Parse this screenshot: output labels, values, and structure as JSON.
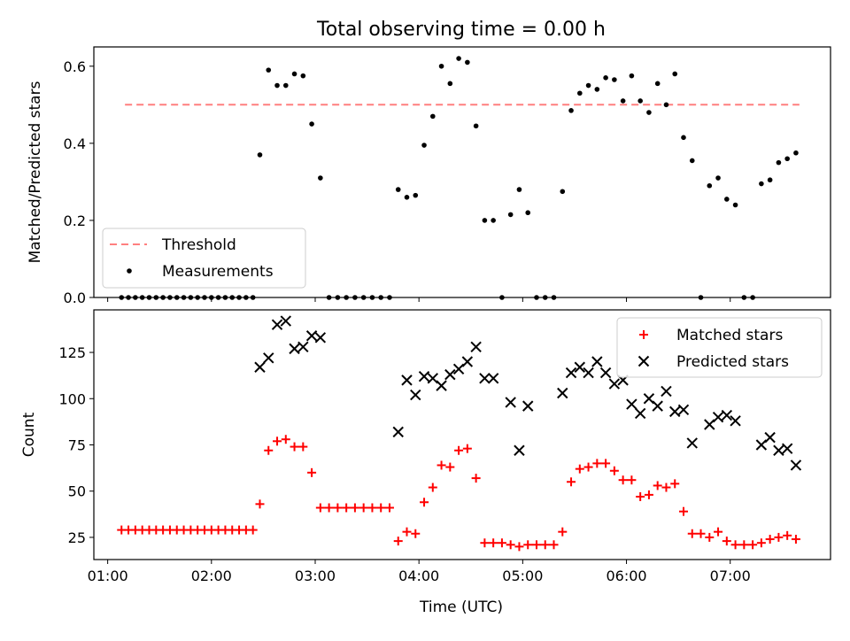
{
  "title": "Total observing time = 0.00 h",
  "xlabel": "Time (UTC)",
  "x_tick_labels": [
    "01:00",
    "02:00",
    "03:00",
    "04:00",
    "05:00",
    "06:00",
    "07:00"
  ],
  "chart_data": [
    {
      "type": "scatter",
      "panel": "top",
      "ylabel": "Matched/Predicted stars",
      "xlim": [
        "00:52",
        "07:58"
      ],
      "ylim": [
        0,
        0.65
      ],
      "y_ticks": [
        0.0,
        0.2,
        0.4,
        0.6
      ],
      "y_tick_labels": [
        "0.0",
        "0.2",
        "0.4",
        "0.6"
      ],
      "legend": "lower-left",
      "threshold": {
        "name": "Threshold",
        "value": 0.5,
        "x_range": [
          "01:10",
          "07:40"
        ],
        "color": "#ff7f7f",
        "style": "dashed"
      },
      "series": [
        {
          "name": "Measurements",
          "color": "#000000",
          "marker": "dot",
          "points": [
            [
              "01:08",
              0
            ],
            [
              "01:12",
              0
            ],
            [
              "01:16",
              0
            ],
            [
              "01:20",
              0
            ],
            [
              "01:24",
              0
            ],
            [
              "01:28",
              0
            ],
            [
              "01:32",
              0
            ],
            [
              "01:36",
              0
            ],
            [
              "01:40",
              0
            ],
            [
              "01:44",
              0
            ],
            [
              "01:48",
              0
            ],
            [
              "01:52",
              0
            ],
            [
              "01:56",
              0
            ],
            [
              "02:00",
              0
            ],
            [
              "02:04",
              0
            ],
            [
              "02:08",
              0
            ],
            [
              "02:12",
              0
            ],
            [
              "02:16",
              0
            ],
            [
              "02:20",
              0
            ],
            [
              "02:24",
              0
            ],
            [
              "02:28",
              0.37
            ],
            [
              "02:33",
              0.59
            ],
            [
              "02:38",
              0.55
            ],
            [
              "02:43",
              0.55
            ],
            [
              "02:48",
              0.58
            ],
            [
              "02:53",
              0.575
            ],
            [
              "02:58",
              0.45
            ],
            [
              "03:03",
              0.31
            ],
            [
              "03:08",
              0
            ],
            [
              "03:13",
              0
            ],
            [
              "03:18",
              0
            ],
            [
              "03:23",
              0
            ],
            [
              "03:28",
              0
            ],
            [
              "03:33",
              0
            ],
            [
              "03:38",
              0
            ],
            [
              "03:43",
              0
            ],
            [
              "03:48",
              0.28
            ],
            [
              "03:53",
              0.26
            ],
            [
              "03:58",
              0.265
            ],
            [
              "04:03",
              0.395
            ],
            [
              "04:08",
              0.47
            ],
            [
              "04:13",
              0.6
            ],
            [
              "04:18",
              0.555
            ],
            [
              "04:23",
              0.62
            ],
            [
              "04:28",
              0.61
            ],
            [
              "04:33",
              0.445
            ],
            [
              "04:38",
              0.2
            ],
            [
              "04:43",
              0.2
            ],
            [
              "04:48",
              0
            ],
            [
              "04:53",
              0.215
            ],
            [
              "04:58",
              0.28
            ],
            [
              "05:03",
              0.22
            ],
            [
              "05:08",
              0
            ],
            [
              "05:13",
              0
            ],
            [
              "05:18",
              0
            ],
            [
              "05:23",
              0.275
            ],
            [
              "05:28",
              0.485
            ],
            [
              "05:33",
              0.53
            ],
            [
              "05:38",
              0.55
            ],
            [
              "05:43",
              0.54
            ],
            [
              "05:48",
              0.57
            ],
            [
              "05:53",
              0.565
            ],
            [
              "05:58",
              0.51
            ],
            [
              "06:03",
              0.575
            ],
            [
              "06:08",
              0.51
            ],
            [
              "06:13",
              0.48
            ],
            [
              "06:18",
              0.555
            ],
            [
              "06:23",
              0.5
            ],
            [
              "06:28",
              0.58
            ],
            [
              "06:33",
              0.415
            ],
            [
              "06:38",
              0.355
            ],
            [
              "06:43",
              0
            ],
            [
              "06:48",
              0.29
            ],
            [
              "06:53",
              0.31
            ],
            [
              "06:58",
              0.255
            ],
            [
              "07:03",
              0.24
            ],
            [
              "07:08",
              0
            ],
            [
              "07:13",
              0
            ],
            [
              "07:18",
              0.295
            ],
            [
              "07:23",
              0.305
            ],
            [
              "07:28",
              0.35
            ],
            [
              "07:33",
              0.36
            ],
            [
              "07:38",
              0.375
            ]
          ]
        }
      ]
    },
    {
      "type": "scatter",
      "panel": "bottom",
      "ylabel": "Count",
      "xlabel": "Time (UTC)",
      "xlim": [
        "00:52",
        "07:58"
      ],
      "ylim": [
        13,
        148
      ],
      "y_ticks": [
        25,
        50,
        75,
        100,
        125
      ],
      "y_tick_labels": [
        "25",
        "50",
        "75",
        "100",
        "125"
      ],
      "legend": "top-right",
      "series": [
        {
          "name": "Matched stars",
          "color": "#ff0000",
          "marker": "plus",
          "points": [
            [
              "01:08",
              29
            ],
            [
              "01:12",
              29
            ],
            [
              "01:16",
              29
            ],
            [
              "01:20",
              29
            ],
            [
              "01:24",
              29
            ],
            [
              "01:28",
              29
            ],
            [
              "01:32",
              29
            ],
            [
              "01:36",
              29
            ],
            [
              "01:40",
              29
            ],
            [
              "01:44",
              29
            ],
            [
              "01:48",
              29
            ],
            [
              "01:52",
              29
            ],
            [
              "01:56",
              29
            ],
            [
              "02:00",
              29
            ],
            [
              "02:04",
              29
            ],
            [
              "02:08",
              29
            ],
            [
              "02:12",
              29
            ],
            [
              "02:16",
              29
            ],
            [
              "02:20",
              29
            ],
            [
              "02:24",
              29
            ],
            [
              "02:28",
              43
            ],
            [
              "02:33",
              72
            ],
            [
              "02:38",
              77
            ],
            [
              "02:43",
              78
            ],
            [
              "02:48",
              74
            ],
            [
              "02:53",
              74
            ],
            [
              "02:58",
              60
            ],
            [
              "03:03",
              41
            ],
            [
              "03:08",
              41
            ],
            [
              "03:13",
              41
            ],
            [
              "03:18",
              41
            ],
            [
              "03:23",
              41
            ],
            [
              "03:28",
              41
            ],
            [
              "03:33",
              41
            ],
            [
              "03:38",
              41
            ],
            [
              "03:43",
              41
            ],
            [
              "03:48",
              23
            ],
            [
              "03:53",
              28
            ],
            [
              "03:58",
              27
            ],
            [
              "04:03",
              44
            ],
            [
              "04:08",
              52
            ],
            [
              "04:13",
              64
            ],
            [
              "04:18",
              63
            ],
            [
              "04:23",
              72
            ],
            [
              "04:28",
              73
            ],
            [
              "04:33",
              57
            ],
            [
              "04:38",
              22
            ],
            [
              "04:43",
              22
            ],
            [
              "04:48",
              22
            ],
            [
              "04:53",
              21
            ],
            [
              "04:58",
              20
            ],
            [
              "05:03",
              21
            ],
            [
              "05:08",
              21
            ],
            [
              "05:13",
              21
            ],
            [
              "05:18",
              21
            ],
            [
              "05:23",
              28
            ],
            [
              "05:28",
              55
            ],
            [
              "05:33",
              62
            ],
            [
              "05:38",
              63
            ],
            [
              "05:43",
              65
            ],
            [
              "05:48",
              65
            ],
            [
              "05:53",
              61
            ],
            [
              "05:58",
              56
            ],
            [
              "06:03",
              56
            ],
            [
              "06:08",
              47
            ],
            [
              "06:13",
              48
            ],
            [
              "06:18",
              53
            ],
            [
              "06:23",
              52
            ],
            [
              "06:28",
              54
            ],
            [
              "06:33",
              39
            ],
            [
              "06:38",
              27
            ],
            [
              "06:43",
              27
            ],
            [
              "06:48",
              25
            ],
            [
              "06:53",
              28
            ],
            [
              "06:58",
              23
            ],
            [
              "07:03",
              21
            ],
            [
              "07:08",
              21
            ],
            [
              "07:13",
              21
            ],
            [
              "07:18",
              22
            ],
            [
              "07:23",
              24
            ],
            [
              "07:28",
              25
            ],
            [
              "07:33",
              26
            ],
            [
              "07:38",
              24
            ]
          ]
        },
        {
          "name": "Predicted stars",
          "color": "#000000",
          "marker": "x",
          "points": [
            [
              "02:28",
              117
            ],
            [
              "02:33",
              122
            ],
            [
              "02:38",
              140
            ],
            [
              "02:43",
              142
            ],
            [
              "02:48",
              127
            ],
            [
              "02:53",
              128
            ],
            [
              "02:58",
              134
            ],
            [
              "03:03",
              133
            ],
            [
              "03:48",
              82
            ],
            [
              "03:53",
              110
            ],
            [
              "03:58",
              102
            ],
            [
              "04:03",
              112
            ],
            [
              "04:08",
              111
            ],
            [
              "04:13",
              107
            ],
            [
              "04:18",
              113
            ],
            [
              "04:23",
              116
            ],
            [
              "04:28",
              120
            ],
            [
              "04:33",
              128
            ],
            [
              "04:38",
              111
            ],
            [
              "04:43",
              111
            ],
            [
              "04:53",
              98
            ],
            [
              "04:58",
              72
            ],
            [
              "05:03",
              96
            ],
            [
              "05:23",
              103
            ],
            [
              "05:28",
              114
            ],
            [
              "05:33",
              117
            ],
            [
              "05:38",
              114
            ],
            [
              "05:43",
              120
            ],
            [
              "05:48",
              114
            ],
            [
              "05:53",
              108
            ],
            [
              "05:58",
              110
            ],
            [
              "06:03",
              97
            ],
            [
              "06:08",
              92
            ],
            [
              "06:13",
              100
            ],
            [
              "06:18",
              96
            ],
            [
              "06:23",
              104
            ],
            [
              "06:28",
              93
            ],
            [
              "06:33",
              94
            ],
            [
              "06:38",
              76
            ],
            [
              "06:48",
              86
            ],
            [
              "06:53",
              90
            ],
            [
              "06:58",
              91
            ],
            [
              "07:03",
              88
            ],
            [
              "07:18",
              75
            ],
            [
              "07:23",
              79
            ],
            [
              "07:28",
              72
            ],
            [
              "07:33",
              73
            ],
            [
              "07:38",
              64
            ]
          ]
        }
      ]
    }
  ]
}
